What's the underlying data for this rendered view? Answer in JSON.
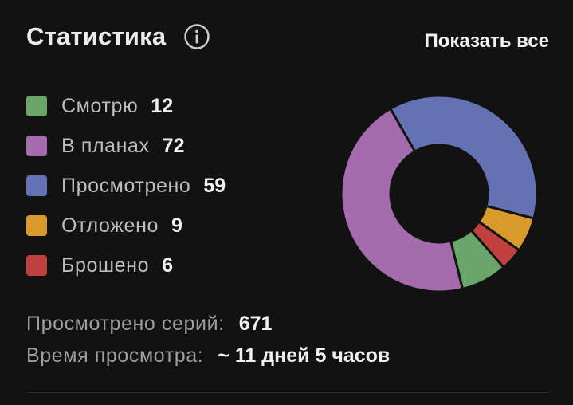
{
  "header": {
    "title": "Статистика",
    "info_icon": "info-circle-icon",
    "show_all_label": "Показать все"
  },
  "chart_data": {
    "type": "pie",
    "donut": true,
    "categories": [
      "Смотрю",
      "В планах",
      "Просмотрено",
      "Отложено",
      "Брошено"
    ],
    "values": [
      12,
      72,
      59,
      9,
      6
    ],
    "colors": [
      "#6aa66a",
      "#a46cad",
      "#6471b3",
      "#d99a2b",
      "#c0403f"
    ],
    "legend_placement": "left"
  },
  "legend": [
    {
      "label": "Смотрю",
      "value": "12"
    },
    {
      "label": "В планах",
      "value": "72"
    },
    {
      "label": "Просмотрено",
      "value": "59"
    },
    {
      "label": "Отложено",
      "value": "9"
    },
    {
      "label": "Брошено",
      "value": "6"
    }
  ],
  "stats": {
    "episodes_label": "Просмотрено серий:",
    "episodes_value": "671",
    "time_label": "Время просмотра:",
    "time_value": "~ 11 дней 5 часов"
  }
}
